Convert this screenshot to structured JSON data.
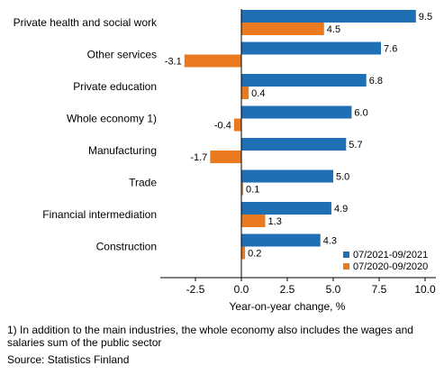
{
  "chart_data": {
    "type": "bar",
    "orientation": "horizontal",
    "categories": [
      "Private health and social work",
      "Other services",
      "Private education",
      "Whole economy 1)",
      "Manufacturing",
      "Trade",
      "Financial intermediation",
      "Construction"
    ],
    "series": [
      {
        "name": "07/2021-09/2021",
        "color": "#1f6fb4",
        "values": [
          9.5,
          7.6,
          6.8,
          6.0,
          5.7,
          5.0,
          4.9,
          4.3
        ]
      },
      {
        "name": "07/2020-09/2020",
        "color": "#ea7a1f",
        "values": [
          4.5,
          -3.1,
          0.4,
          -0.4,
          -1.7,
          0.1,
          1.3,
          0.2
        ]
      }
    ],
    "value_labels": [
      [
        "9.5",
        "7.6",
        "6.8",
        "6.0",
        "5.7",
        "5.0",
        "4.9",
        "4.3"
      ],
      [
        "4.5",
        "-3.1",
        "0.4",
        "-0.4",
        "-1.7",
        "0.1",
        "1.3",
        "0.2"
      ]
    ],
    "xlabel": "Year-on-year change, %",
    "xlim": [
      -4.5,
      10.5
    ],
    "xticks": [
      -2.5,
      0.0,
      2.5,
      5.0,
      7.5,
      10.0
    ],
    "xtick_labels": [
      "-2.5",
      "0.0",
      "2.5",
      "5.0",
      "7.5",
      "10.0"
    ],
    "legend_position": "bottom-right",
    "grid": false
  },
  "footnote": "1) In addition to the main industries, the whole economy also includes the wages and salaries sum of the public sector",
  "source": "Source: Statistics Finland"
}
